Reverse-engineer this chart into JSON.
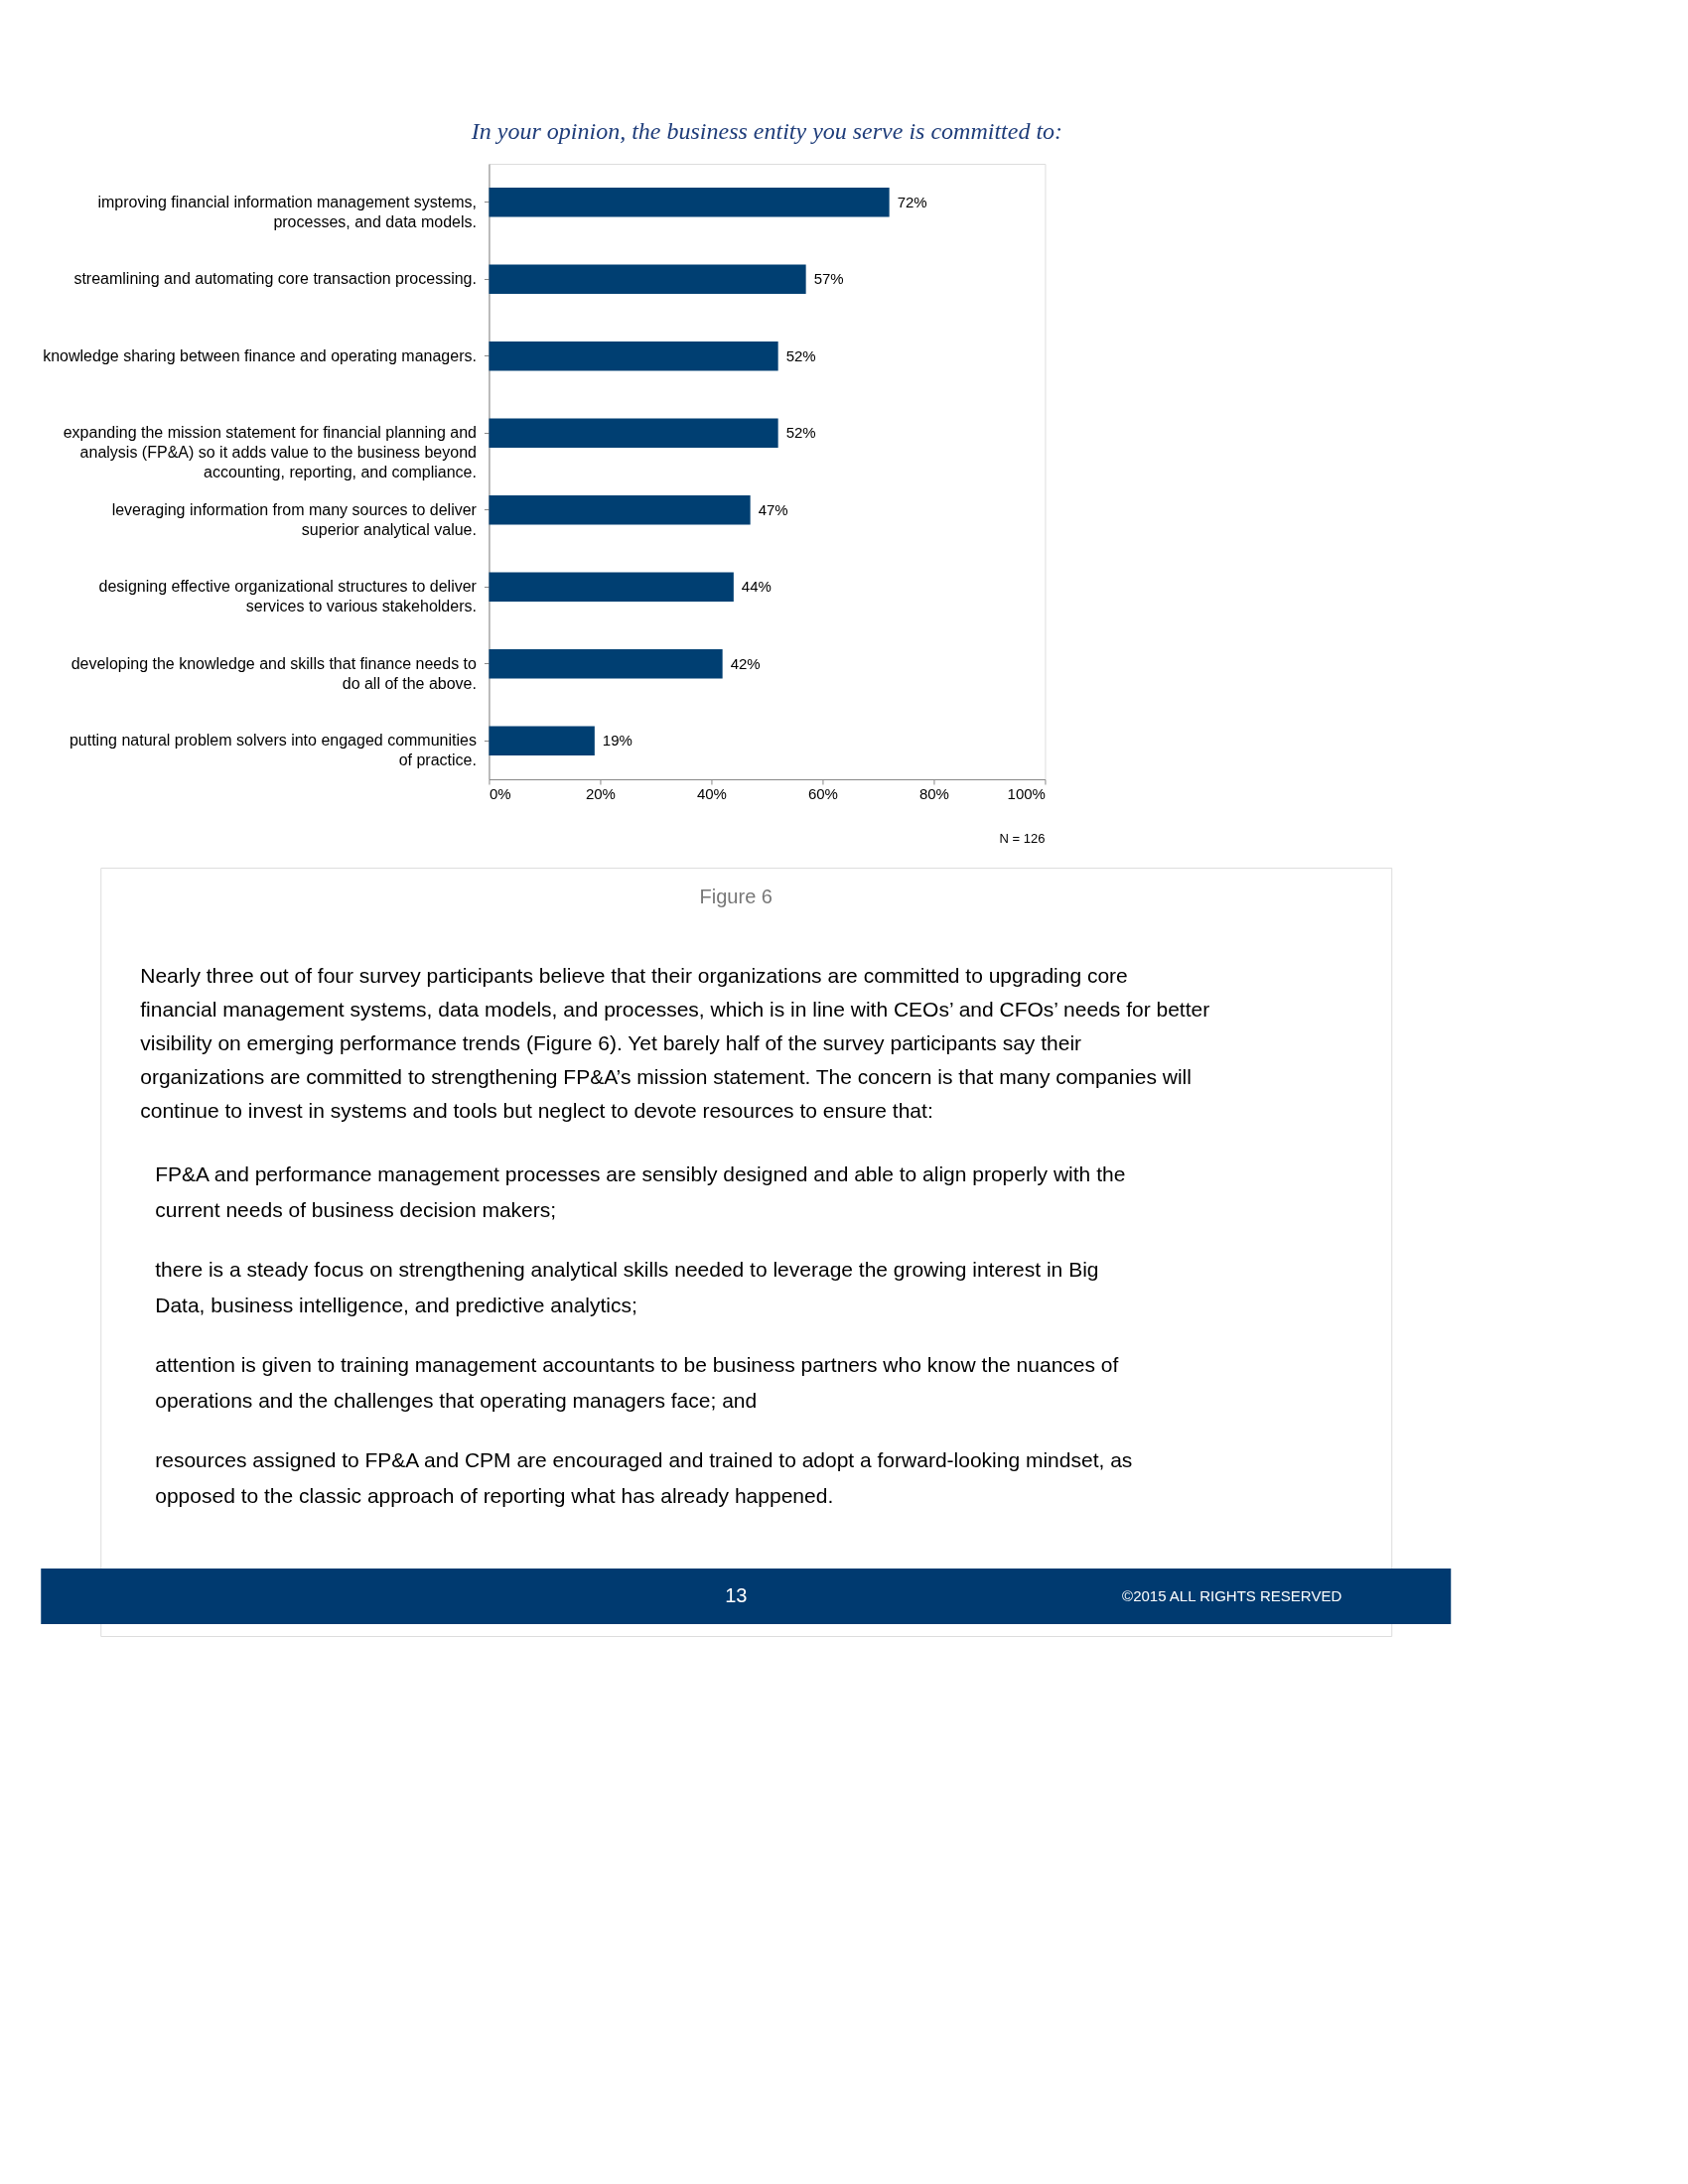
{
  "chart_data": {
    "type": "bar",
    "orientation": "horizontal",
    "title": "In your opinion, the business entity you serve is committed to:",
    "categories": [
      "improving financial information management systems, processes, and data models.",
      "streamlining and automating core transaction processing.",
      "knowledge sharing between finance and operating managers.",
      "expanding the mission statement for financial planning and analysis (FP&A) so it adds value to the business beyond accounting, reporting, and compliance.",
      "leveraging information from many sources to deliver superior analytical value.",
      "designing effective organizational structures to deliver services to various stakeholders.",
      "developing the knowledge and skills that finance needs to do all of the above.",
      "putting natural problem solvers into engaged communities of practice."
    ],
    "values": [
      72,
      57,
      52,
      52,
      47,
      44,
      42,
      19
    ],
    "value_labels": [
      "72%",
      "57%",
      "52%",
      "52%",
      "47%",
      "44%",
      "42%",
      "19%"
    ],
    "color": "#003f72",
    "xlim": [
      0,
      100
    ],
    "xticks": [
      {
        "value": 0,
        "label": "0%"
      },
      {
        "value": 20,
        "label": "20%"
      },
      {
        "value": 40,
        "label": "40%"
      },
      {
        "value": 60,
        "label": "60%"
      },
      {
        "value": 80,
        "label": "80%"
      },
      {
        "value": 100,
        "label": "100%"
      }
    ],
    "grid": false,
    "annotations": [
      "N = 126",
      "Figure 6",
      "Nearly three out of four survey participants believe that their organizations are committed to upgrading core financial management systems, data models, and processes, which is in line with CEOs’ and CFOs’ needs for better visibility on emerging performance trends (Figure 6). Yet barely half of the survey participants say their organizations are committed to strengthening FP&A’s mission statement. The concern is that many companies will continue to invest in systems and tools but neglect to devote resources to ensure that:",
      "FP&A and performance management processes are sensibly designed and able to align properly with the current needs of business decision makers;",
      "there is a steady focus on strengthening analytical skills needed to leverage the growing interest in Big Data, business intelligence, and predictive analytics;",
      "attention is given to training management accountants to be business partners who know the nuances of operations and the challenges that operating managers face; and",
      "resources assigned to FP&A and CPM are encouraged and trained to adopt a forward-looking mindset, as opposed to the classic approach of reporting what has already happened.",
      "13",
      "©2015 ALL RIGHTS RESERVED"
    ]
  }
}
